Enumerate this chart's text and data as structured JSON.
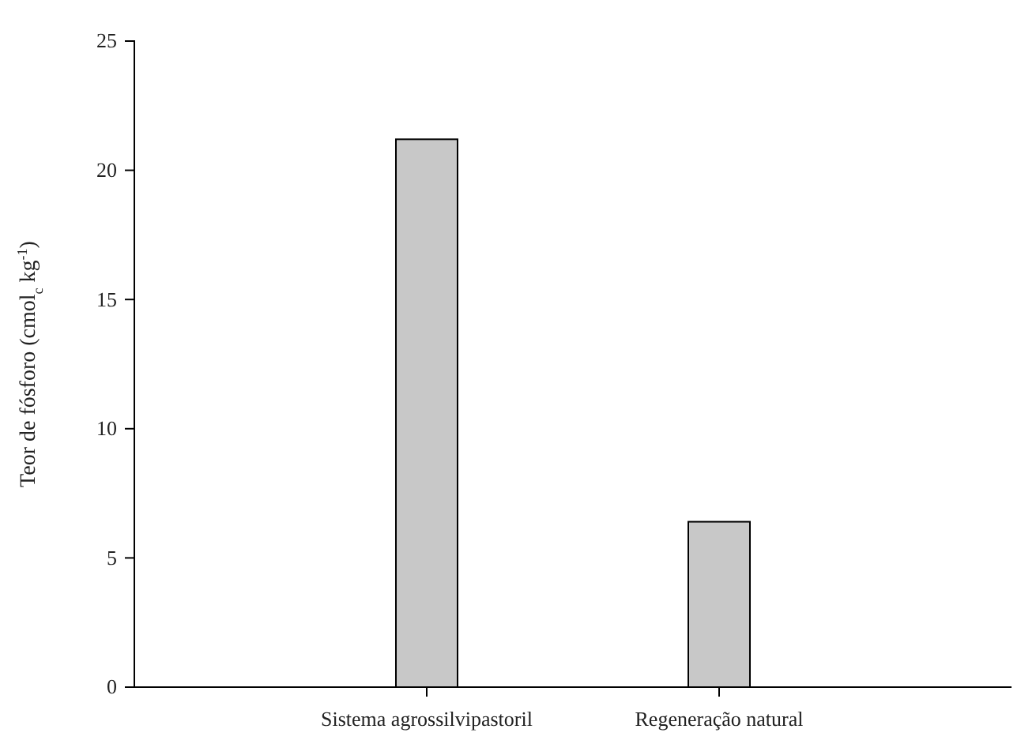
{
  "chart_data": {
    "type": "bar",
    "ylabel": "Teor de fósforo (cmol$_{c}$ kg$^{-1}$)",
    "categories": [
      "Sistema agrossilvipastoril",
      "Regeneração natural"
    ],
    "values": [
      21.2,
      6.4
    ],
    "color": "#c8c8c8",
    "ylim": [
      0,
      25
    ],
    "yticks": [
      0,
      5,
      10,
      15,
      20,
      25
    ],
    "grid": false
  }
}
